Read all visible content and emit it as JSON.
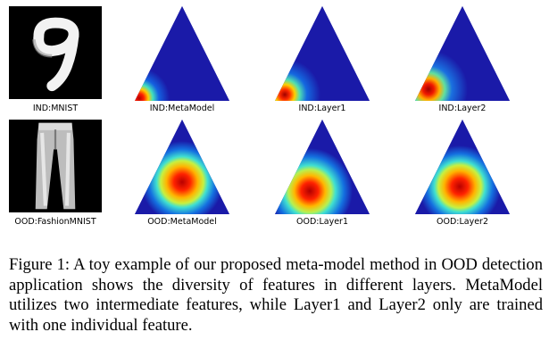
{
  "figure": {
    "rows": [
      {
        "image_label": "IND:MNIST",
        "simplex_labels": [
          "IND:MetaModel",
          "IND:Layer1",
          "IND:Layer2"
        ]
      },
      {
        "image_label": "OOD:FashionMNIST",
        "simplex_labels": [
          "OOD:MetaModel",
          "OOD:Layer1",
          "OOD:Layer2"
        ]
      }
    ],
    "caption": "Figure 1: A toy example of our proposed meta-model method in OOD detection application shows the diversity of features in different layers. MetaModel utilizes two intermediate features, while Layer1 and Layer2 only are trained with one individual feature."
  },
  "colors": {
    "background_blue": "#1a1aa8",
    "hot_core": "#cc0000"
  }
}
